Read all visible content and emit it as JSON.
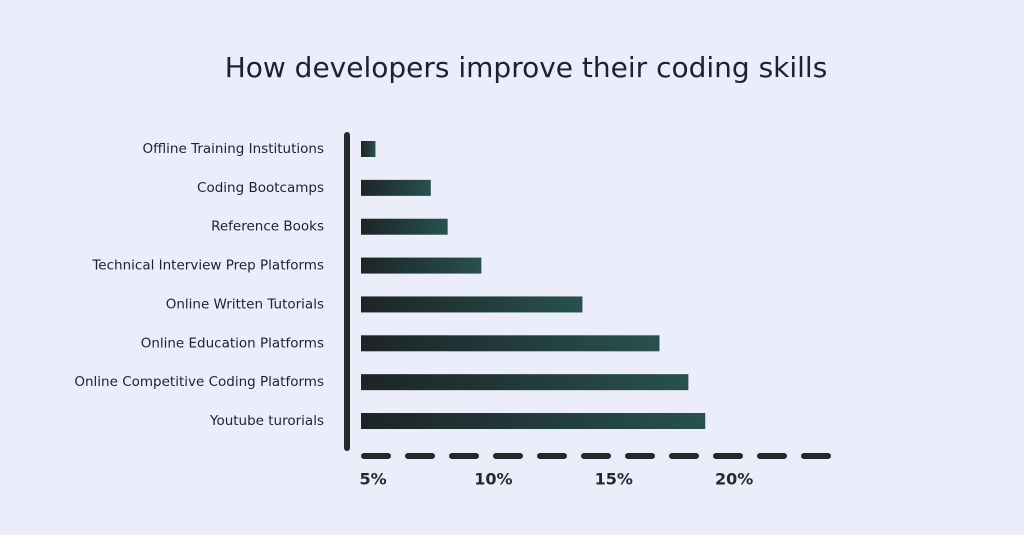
{
  "chart_data": {
    "type": "bar",
    "orientation": "horizontal",
    "title": "How developers improve their coding skills",
    "categories": [
      "Offline Training Institutions",
      "Coding Bootcamps",
      "Reference Books",
      "Technical Interview Prep Platforms",
      "Online Written Tutorials",
      "Online Education Platforms",
      "Online Competitive Coding Platforms",
      "Youtube turorials"
    ],
    "values": [
      5.1,
      7.4,
      8.1,
      9.5,
      13.7,
      16.9,
      18.1,
      18.8
    ],
    "color": [
      "#1d2426",
      "#27514f"
    ],
    "xlim": [
      4.5,
      24.4
    ],
    "xticks": [
      {
        "value": 5,
        "label": "5%"
      },
      {
        "value": 10,
        "label": "10%"
      },
      {
        "value": 15,
        "label": "15%"
      },
      {
        "value": 20,
        "label": "20%"
      }
    ],
    "grid": false
  }
}
